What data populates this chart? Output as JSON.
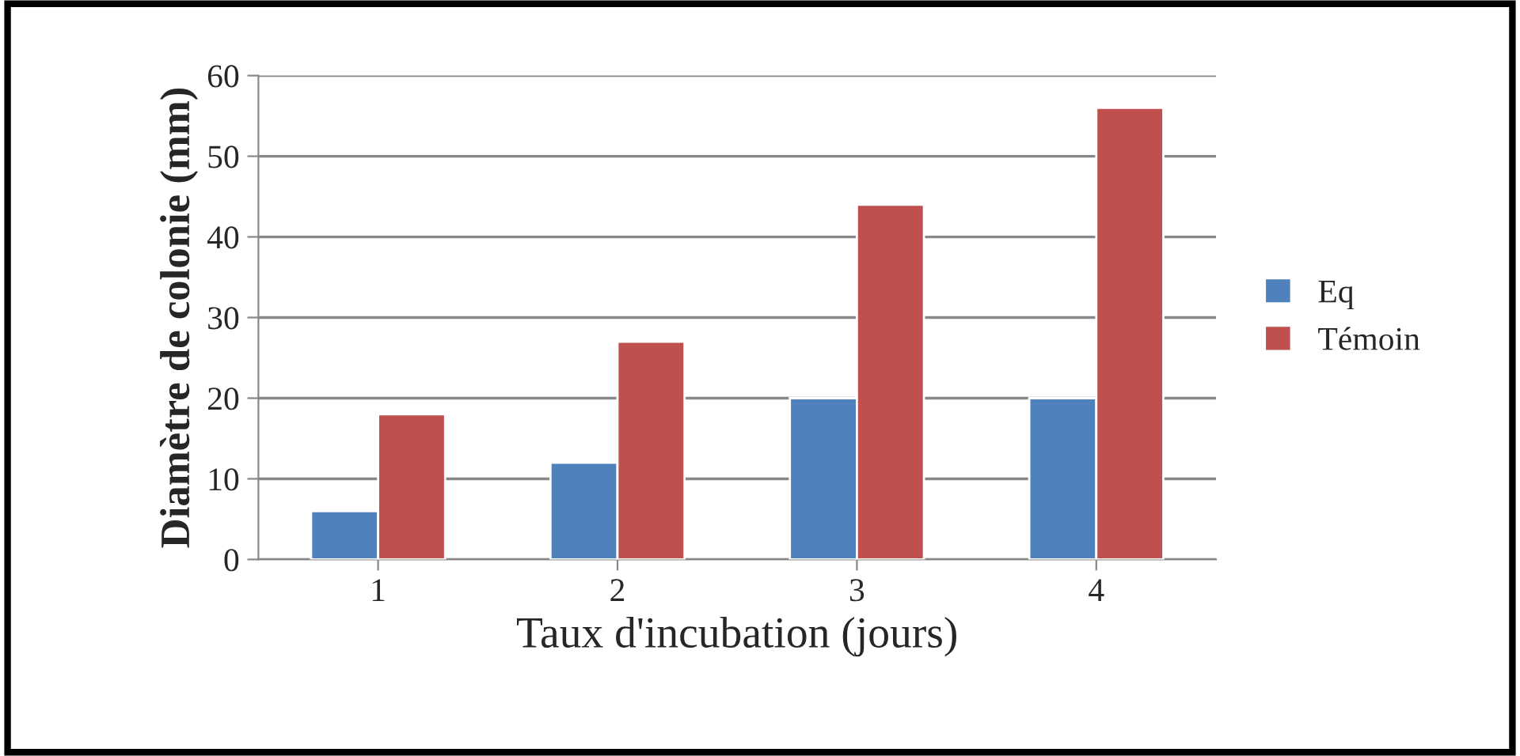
{
  "chart_data": {
    "type": "bar",
    "xlabel": "Taux d'incubation (jours)",
    "ylabel": "Diamètre de colonie (mm)",
    "categories": [
      "1",
      "2",
      "3",
      "4"
    ],
    "series": [
      {
        "name": "Eq",
        "color": "#4f81bd",
        "values": [
          6,
          12,
          20,
          20
        ]
      },
      {
        "name": "Témoin",
        "color": "#c0504d",
        "values": [
          18,
          27,
          44,
          56
        ]
      }
    ],
    "ylim": [
      0,
      60
    ],
    "yticks": [
      0,
      10,
      20,
      30,
      40,
      50,
      60
    ],
    "grid": "y",
    "legend": "right"
  }
}
